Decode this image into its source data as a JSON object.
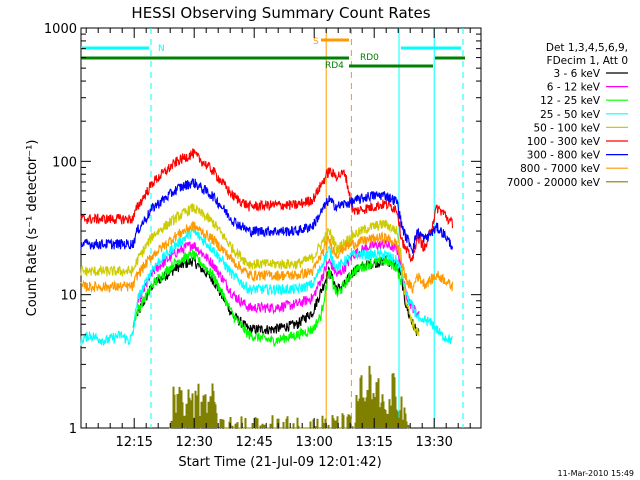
{
  "chart_data": {
    "type": "line",
    "title": "HESSI Observing Summary Count Rates",
    "xlabel": "Start Time (21-Jul-09 12:01:42)",
    "ylabel": "Count Rate (s⁻¹ detector⁻¹)",
    "y_scale": "log",
    "ylim": [
      1,
      1000
    ],
    "xlim_minutes": [
      0,
      100
    ],
    "x_ticks": [
      {
        "min": 13.3,
        "label": "12:15"
      },
      {
        "min": 28.3,
        "label": "12:30"
      },
      {
        "min": 43.3,
        "label": "12:45"
      },
      {
        "min": 58.3,
        "label": "13:00"
      },
      {
        "min": 73.3,
        "label": "13:15"
      },
      {
        "min": 88.3,
        "label": "13:30"
      }
    ],
    "y_ticks": [
      {
        "v": 1,
        "label": "1"
      },
      {
        "v": 10,
        "label": "10"
      },
      {
        "v": 100,
        "label": "100"
      },
      {
        "v": 1000,
        "label": "1000"
      }
    ],
    "legend": {
      "position": "top-right",
      "header": [
        "Det 1,3,4,5,6,9,",
        "FDecim 1, Att 0"
      ]
    },
    "series": [
      {
        "name": "3 - 6 keV",
        "color": "#000000",
        "t": [
          0,
          13,
          14,
          18,
          24,
          28,
          33,
          38,
          42,
          48,
          54,
          58,
          62,
          63,
          64,
          66,
          68,
          72,
          76,
          79,
          80,
          81,
          82,
          83,
          84.5
        ],
        "v": [
          null,
          null,
          7,
          12,
          16,
          18,
          13,
          7,
          5.5,
          5.5,
          6,
          7.5,
          15,
          13,
          11,
          12,
          15,
          17,
          18,
          17,
          14,
          9,
          7,
          6,
          5
        ]
      },
      {
        "name": "6 - 12 keV",
        "color": "#ff00ff",
        "t": [
          0,
          13,
          14,
          18,
          24,
          28,
          33,
          38,
          42,
          48,
          54,
          58,
          62,
          63,
          64,
          66,
          68,
          72,
          76,
          79,
          80,
          81,
          82,
          83,
          84.5
        ],
        "v": [
          null,
          null,
          8.5,
          15,
          21,
          24,
          17,
          10,
          8,
          8,
          8.5,
          9.5,
          18,
          16,
          14,
          16,
          20,
          23,
          24,
          22,
          17,
          11,
          9,
          8,
          7
        ]
      },
      {
        "name": "12 - 25 keV",
        "color": "#00ff00",
        "t": [
          13,
          14,
          18,
          24,
          28,
          33,
          38,
          42,
          48,
          54,
          58,
          60,
          62,
          63,
          64,
          66,
          68,
          72,
          76,
          79,
          80
        ],
        "v": [
          6,
          7.5,
          12,
          18,
          20,
          14,
          7,
          5,
          4.5,
          5,
          5.5,
          7,
          15,
          12,
          10,
          12,
          15,
          17,
          18,
          16,
          12
        ]
      },
      {
        "name": "25 - 50 keV",
        "color": "#00ffff",
        "t": [
          0,
          2,
          6,
          10,
          12,
          13,
          14,
          18,
          24,
          28,
          33,
          38,
          42,
          48,
          54,
          58,
          62,
          63,
          64,
          66,
          68,
          72,
          76,
          79,
          80,
          81,
          82,
          83,
          84,
          85,
          86,
          88,
          90,
          93
        ],
        "v": [
          4.5,
          5,
          4.5,
          5,
          4.5,
          5,
          9,
          16,
          24,
          30,
          22,
          14,
          11,
          11,
          11,
          12,
          22,
          18,
          16,
          18,
          20,
          20,
          20,
          18,
          15,
          11,
          9,
          8,
          7,
          6,
          6.5,
          6,
          5,
          4.5
        ]
      },
      {
        "name": "50 - 100 keV",
        "color": "#cccc00",
        "t": [
          0,
          13,
          14,
          18,
          24,
          28,
          33,
          38,
          42,
          48,
          54,
          58,
          62,
          63,
          64,
          66,
          68,
          72,
          76,
          79,
          80,
          81,
          82,
          83,
          84.5
        ],
        "v": [
          15,
          15,
          18,
          28,
          38,
          45,
          35,
          22,
          17,
          17,
          17,
          19,
          30,
          26,
          22,
          25,
          28,
          32,
          34,
          30,
          20,
          10,
          7.5,
          6,
          5
        ]
      },
      {
        "name": "100 - 300 keV",
        "color": "#ff0000",
        "t": [
          0,
          13,
          14,
          18,
          24,
          28,
          33,
          38,
          42,
          48,
          54,
          58,
          62,
          63,
          64,
          66,
          68,
          72,
          76,
          79,
          80,
          81,
          82,
          83,
          84,
          86,
          89,
          91,
          92,
          93
        ],
        "v": [
          37,
          37,
          45,
          70,
          100,
          115,
          85,
          55,
          46,
          47,
          47,
          52,
          85,
          80,
          78,
          82,
          42,
          45,
          48,
          44,
          28,
          22,
          20,
          18,
          28,
          22,
          45,
          40,
          36,
          34
        ]
      },
      {
        "name": "300 - 800 keV",
        "color": "#0000ff",
        "t": [
          0,
          13,
          14,
          18,
          24,
          28,
          33,
          38,
          42,
          48,
          54,
          58,
          62,
          63,
          64,
          66,
          68,
          72,
          76,
          79,
          80,
          81,
          82,
          83,
          84,
          86,
          89,
          91,
          92,
          93
        ],
        "v": [
          24,
          24,
          30,
          45,
          62,
          70,
          55,
          36,
          30,
          30,
          30,
          33,
          52,
          48,
          46,
          48,
          50,
          55,
          56,
          50,
          35,
          28,
          25,
          22,
          30,
          26,
          32,
          28,
          25,
          23
        ]
      },
      {
        "name": "800 - 7000 keV",
        "color": "#ff9900",
        "t": [
          0,
          13,
          14,
          18,
          24,
          28,
          33,
          38,
          42,
          48,
          54,
          58,
          62,
          63,
          64,
          66,
          68,
          72,
          76,
          79,
          80,
          81,
          82,
          83,
          84,
          86,
          89,
          91,
          92,
          93
        ],
        "v": [
          11.5,
          11.5,
          14,
          20,
          28,
          33,
          26,
          18,
          14,
          14,
          14,
          15,
          26,
          22,
          20,
          23,
          24,
          26,
          27,
          24,
          18,
          14,
          12,
          11,
          14,
          12,
          14,
          13,
          12,
          11.5
        ]
      },
      {
        "name": "7000 - 20000 keV",
        "color": "#808000",
        "spiky": true,
        "t": [
          22,
          23,
          24,
          25,
          26,
          27,
          28,
          29,
          30,
          31,
          32,
          33,
          34,
          68,
          69,
          70,
          71,
          72,
          73,
          74,
          75,
          76,
          77,
          78,
          79,
          80,
          81,
          82
        ],
        "v": [
          1.2,
          2.6,
          1.8,
          2.3,
          1.4,
          3.0,
          2.0,
          2.6,
          1.6,
          2.4,
          1.5,
          2.8,
          1.2,
          1.3,
          2.0,
          2.6,
          1.5,
          3.0,
          2.0,
          2.8,
          1.6,
          2.5,
          1.8,
          2.9,
          1.4,
          2.2,
          1.5,
          1.2
        ]
      }
    ],
    "flags": [
      {
        "label": "N",
        "color": "#00ffff",
        "segments": [
          [
            0,
            17
          ],
          [
            80,
            95
          ]
        ]
      },
      {
        "label": "S",
        "color": "#ff9900",
        "segments": [
          [
            60,
            67
          ]
        ]
      },
      {
        "label": "RD0",
        "color": "#008000",
        "segments": [
          [
            67,
            70
          ]
        ]
      },
      {
        "label": "RD4",
        "color": "#008000",
        "segments": [
          [
            0,
            67
          ],
          [
            67,
            88
          ],
          [
            88.5,
            96
          ]
        ]
      }
    ],
    "vlines": [
      {
        "t": 17.5,
        "color": "#00ffff",
        "dash": true
      },
      {
        "t": 61.3,
        "color": "#ff9900",
        "dash": false
      },
      {
        "t": 67.6,
        "color": "#ff9900",
        "dash": true
      },
      {
        "t": 79.5,
        "color": "#00ffff",
        "dash": false
      },
      {
        "t": 88.3,
        "color": "#00ffff",
        "dash": false
      },
      {
        "t": 95.5,
        "color": "#00ffff",
        "dash": true
      }
    ],
    "footer": "11-Mar-2010 15:49"
  }
}
